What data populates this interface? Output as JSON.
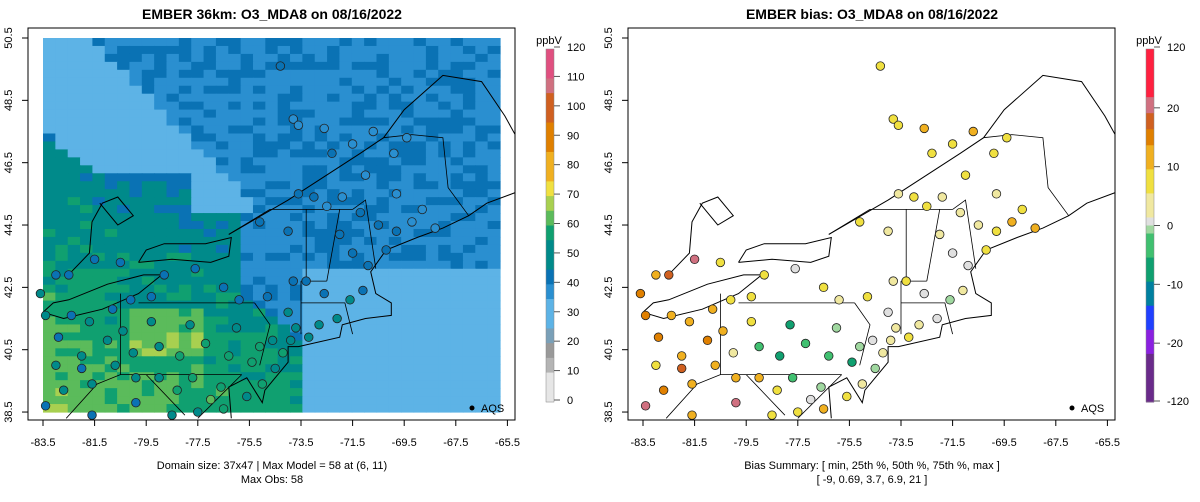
{
  "chart_data": [
    {
      "type": "heatmap",
      "title": "EMBER 36km: O3_MDA8 on 08/16/2022",
      "xlim": [
        -84.1,
        -65.0
      ],
      "ylim": [
        38.3,
        50.8
      ],
      "x_ticks": [
        "-83.5",
        "-81.5",
        "-79.5",
        "-77.5",
        "-75.5",
        "-73.5",
        "-71.5",
        "-69.5",
        "-67.5",
        "-65.5"
      ],
      "y_ticks": [
        "38.5",
        "40.5",
        "42.5",
        "44.5",
        "46.5",
        "48.5",
        "50.5"
      ],
      "legend": {
        "title": "ppbV",
        "ticks": [
          "0",
          "10",
          "20",
          "30",
          "40",
          "50",
          "60",
          "70",
          "80",
          "90",
          "100",
          "110",
          "120"
        ],
        "range": [
          0,
          120
        ]
      },
      "legend_marker": "AQS",
      "footer": [
        "Domain size: 37x47 | Max Model = 58 at (6, 11)",
        "Max Obs: 58"
      ],
      "grid_size": [
        37,
        47
      ]
    },
    {
      "type": "scatter",
      "title": "EMBER bias: O3_MDA8 on 08/16/2022",
      "xlim": [
        -84.1,
        -65.0
      ],
      "ylim": [
        38.3,
        50.8
      ],
      "x_ticks": [
        "-83.5",
        "-81.5",
        "-79.5",
        "-77.5",
        "-75.5",
        "-73.5",
        "-71.5",
        "-69.5",
        "-67.5",
        "-65.5"
      ],
      "y_ticks": [
        "38.5",
        "40.5",
        "42.5",
        "44.5",
        "46.5",
        "48.5",
        "50.5"
      ],
      "legend": {
        "title": "ppbV",
        "ticks": [
          "120",
          "20",
          "10",
          "0",
          "-10",
          "-20",
          "-120"
        ]
      },
      "legend_marker": "AQS",
      "footer": [
        "Bias Summary: [ min, 25th %, 50th %, 75th %, max ]",
        "[ -9,   0.69,   3.7,   6.9,   21 ]"
      ],
      "bias_summary": {
        "min": -9,
        "p25": 0.69,
        "p50": 3.7,
        "p75": 6.9,
        "max": 21
      }
    }
  ],
  "stations": [
    [
      -74.3,
      49.6,
      40,
      8
    ],
    [
      -73.8,
      47.9,
      38,
      7
    ],
    [
      -73.6,
      47.7,
      39,
      6
    ],
    [
      -72.6,
      47.6,
      37,
      9
    ],
    [
      -71.5,
      47.1,
      36,
      8
    ],
    [
      -70.7,
      47.5,
      35,
      10
    ],
    [
      -69.9,
      46.8,
      38,
      6
    ],
    [
      -69.4,
      47.3,
      37,
      7
    ],
    [
      -72.3,
      46.8,
      40,
      5
    ],
    [
      -73.6,
      45.5,
      41,
      4
    ],
    [
      -73.0,
      45.4,
      40,
      6
    ],
    [
      -72.5,
      45.1,
      38,
      5
    ],
    [
      -71.9,
      45.4,
      39,
      3
    ],
    [
      -71.2,
      44.9,
      40,
      2
    ],
    [
      -70.5,
      44.5,
      41,
      4
    ],
    [
      -69.8,
      44.3,
      40,
      7
    ],
    [
      -69.2,
      44.6,
      38,
      9
    ],
    [
      -68.3,
      44.4,
      39,
      11
    ],
    [
      -72.0,
      44.2,
      42,
      2
    ],
    [
      -71.5,
      43.6,
      43,
      0
    ],
    [
      -70.9,
      43.2,
      44,
      1
    ],
    [
      -71.1,
      42.4,
      46,
      3
    ],
    [
      -71.6,
      42.1,
      47,
      -2
    ],
    [
      -72.6,
      42.3,
      46,
      1
    ],
    [
      -73.3,
      42.7,
      44,
      5
    ],
    [
      -73.8,
      42.7,
      45,
      3
    ],
    [
      -74.8,
      42.2,
      43,
      6
    ],
    [
      -75.9,
      42.1,
      44,
      4
    ],
    [
      -76.5,
      42.5,
      44,
      5
    ],
    [
      -77.6,
      43.1,
      45,
      0
    ],
    [
      -78.8,
      42.9,
      43,
      7
    ],
    [
      -79.3,
      42.2,
      45,
      6
    ],
    [
      -80.1,
      42.1,
      44,
      8
    ],
    [
      -80.8,
      41.8,
      46,
      9
    ],
    [
      -81.7,
      41.4,
      47,
      12
    ],
    [
      -82.4,
      41.6,
      46,
      11
    ],
    [
      -83.4,
      41.6,
      48,
      14
    ],
    [
      -83.6,
      42.3,
      47,
      15
    ],
    [
      -83.0,
      42.9,
      45,
      10
    ],
    [
      -82.5,
      42.9,
      44,
      18
    ],
    [
      -81.5,
      43.4,
      42,
      21
    ],
    [
      -80.5,
      43.3,
      43,
      6
    ],
    [
      -83.0,
      40.0,
      48,
      8
    ],
    [
      -82.0,
      40.3,
      47,
      10
    ],
    [
      -81.0,
      40.8,
      47,
      13
    ],
    [
      -80.0,
      40.4,
      51,
      4
    ],
    [
      -79.0,
      40.6,
      52,
      -3
    ],
    [
      -78.2,
      40.3,
      55,
      -6
    ],
    [
      -77.2,
      40.7,
      54,
      -5
    ],
    [
      -76.3,
      40.3,
      56,
      -4
    ],
    [
      -75.4,
      40.1,
      55,
      -9
    ],
    [
      -75.1,
      40.6,
      53,
      -2
    ],
    [
      -74.6,
      40.8,
      51,
      0
    ],
    [
      -74.2,
      40.4,
      53,
      3
    ],
    [
      -73.9,
      40.8,
      50,
      4
    ],
    [
      -73.2,
      40.9,
      48,
      5
    ],
    [
      -72.8,
      41.3,
      48,
      2
    ],
    [
      -72.1,
      41.5,
      47,
      0
    ],
    [
      -76.6,
      39.3,
      57,
      -1
    ],
    [
      -77.0,
      38.9,
      58,
      1
    ],
    [
      -77.7,
      39.6,
      55,
      -3
    ],
    [
      -78.3,
      39.2,
      53,
      7
    ],
    [
      -79.0,
      39.6,
      52,
      9
    ],
    [
      -79.9,
      39.6,
      51,
      10
    ],
    [
      -80.7,
      40.0,
      50,
      12
    ],
    [
      -81.6,
      39.4,
      48,
      9
    ],
    [
      -82.7,
      39.2,
      47,
      14
    ],
    [
      -83.4,
      38.7,
      46,
      20
    ],
    [
      -81.6,
      38.4,
      45,
      10
    ],
    [
      -79.9,
      38.8,
      44,
      21
    ],
    [
      -78.5,
      38.4,
      50,
      8
    ],
    [
      -77.5,
      38.5,
      52,
      7
    ],
    [
      -76.5,
      38.6,
      55,
      9
    ],
    [
      -75.6,
      39.0,
      52,
      5
    ],
    [
      -75.0,
      39.4,
      53,
      2
    ],
    [
      -74.5,
      39.9,
      51,
      -1
    ],
    [
      -76.0,
      41.2,
      50,
      -2
    ],
    [
      -77.8,
      41.3,
      49,
      -6
    ],
    [
      -79.3,
      41.4,
      47,
      5
    ],
    [
      -80.4,
      41.1,
      48,
      11
    ],
    [
      -82.0,
      39.9,
      46,
      18
    ],
    [
      -82.9,
      40.9,
      45,
      13
    ],
    [
      -74.0,
      41.7,
      47,
      0
    ],
    [
      -73.7,
      41.2,
      48,
      2
    ],
    [
      -70.2,
      43.7,
      42,
      6
    ],
    [
      -71.0,
      46.1,
      39,
      5
    ],
    [
      -69.8,
      45.5,
      37,
      4
    ],
    [
      -68.8,
      45.0,
      38,
      7
    ],
    [
      -75.1,
      44.6,
      42,
      6
    ],
    [
      -74.0,
      44.3,
      41,
      3
    ]
  ]
}
